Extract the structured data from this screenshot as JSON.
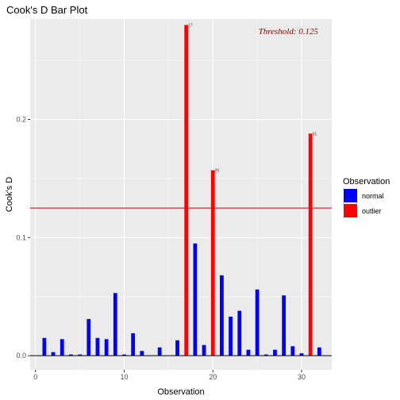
{
  "colors": {
    "panel": "#ebebeb",
    "grid_major": "#ffffff",
    "normal": "#0000ff",
    "outlier": "#ff0000",
    "threshold_line": "#cc0000",
    "threshold_text": "#8b0000",
    "baseline": "#000000"
  },
  "chart_data": {
    "type": "bar",
    "title": "Cook's D Bar Plot",
    "xlabel": "Observation",
    "ylabel": "Cook's D",
    "xlim": [
      -0.6,
      33.4
    ],
    "ylim": [
      -0.012,
      0.285
    ],
    "x_ticks": [
      0,
      10,
      20,
      30
    ],
    "x_tick_labels": [
      "0",
      "10",
      "20",
      "30"
    ],
    "y_ticks": [
      0.0,
      0.1,
      0.2
    ],
    "y_tick_labels": [
      "0.0",
      "0.1",
      "0.2"
    ],
    "grid": true,
    "threshold": 0.125,
    "threshold_label": "Threshold: 0.125",
    "legend": {
      "title": "Observation",
      "position": "right",
      "items": [
        {
          "key": "normal",
          "label": "normal",
          "color": "#0000ff"
        },
        {
          "key": "outlier",
          "label": "outlier",
          "color": "#ff0000"
        }
      ]
    },
    "series": [
      {
        "name": "normal",
        "x": [
          1,
          2,
          3,
          4,
          5,
          6,
          7,
          8,
          9,
          10,
          11,
          12,
          14,
          16,
          18,
          19,
          21,
          22,
          23,
          24,
          25,
          26,
          27,
          28,
          29,
          30,
          32
        ],
        "values": [
          0.015,
          0.003,
          0.014,
          0.001,
          0.001,
          0.031,
          0.015,
          0.014,
          0.053,
          0.001,
          0.019,
          0.004,
          0.007,
          0.013,
          0.095,
          0.009,
          0.068,
          0.033,
          0.038,
          0.005,
          0.056,
          0.001,
          0.005,
          0.051,
          0.008,
          0.002,
          0.007
        ]
      },
      {
        "name": "outlier",
        "x": [
          17,
          20,
          31
        ],
        "values": [
          0.28,
          0.157,
          0.188
        ],
        "labels": [
          "17",
          "20",
          "31"
        ]
      }
    ]
  }
}
